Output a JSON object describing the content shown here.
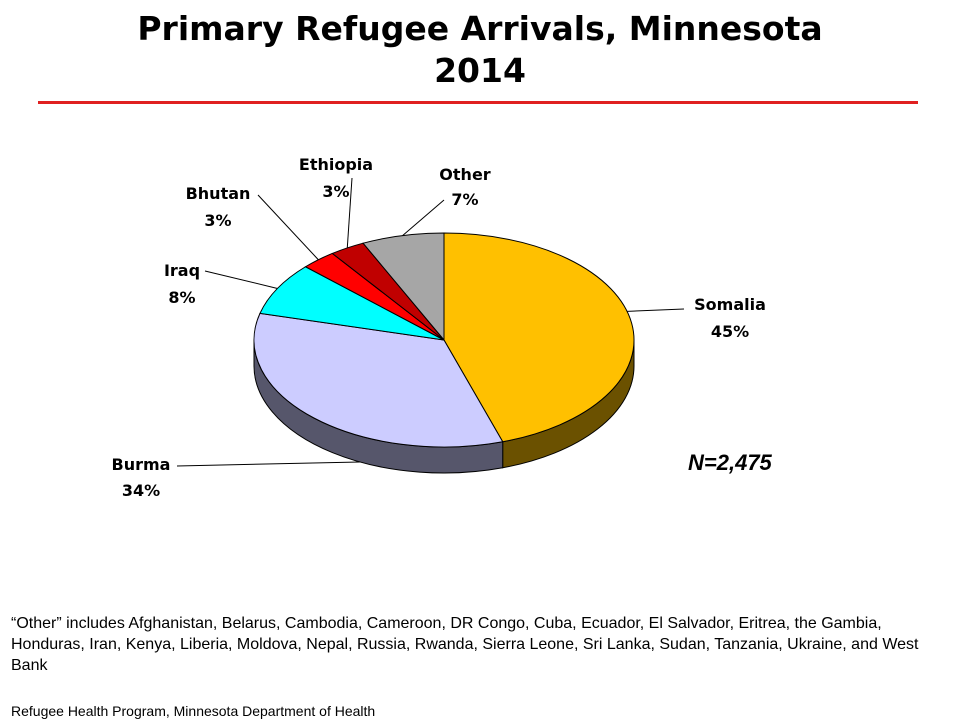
{
  "title_line1": "Primary Refugee Arrivals, Minnesota",
  "title_line2": "2014",
  "rule_color": "#e02020",
  "chart_data": {
    "type": "pie",
    "title": "Primary Refugee Arrivals, Minnesota 2014",
    "slices": [
      {
        "label": "Somalia",
        "value": 45,
        "display": "45%",
        "color": "#ffc000"
      },
      {
        "label": "Burma",
        "value": 34,
        "display": "34%",
        "color": "#ccccff"
      },
      {
        "label": "Iraq",
        "value": 8,
        "display": "8%",
        "color": "#00ffff"
      },
      {
        "label": "Bhutan",
        "value": 3,
        "display": "3%",
        "color": "#ff0000"
      },
      {
        "label": "Ethiopia",
        "value": 3,
        "display": "3%",
        "color": "#c00000"
      },
      {
        "label": "Other",
        "value": 7,
        "display": "7%",
        "color": "#a6a6a6"
      }
    ],
    "start": "12 o'clock, clockwise",
    "style": "3d"
  },
  "n_label": "N=2,475",
  "footnote": "“Other” includes Afghanistan, Belarus, Cambodia, Cameroon, DR Congo, Cuba, Ecuador, El Salvador, Eritrea, the Gambia, Honduras, Iran, Kenya, Liberia, Moldova, Nepal, Russia, Rwanda, Sierra Leone, Sri Lanka, Sudan, Tanzania, Ukraine, and West Bank",
  "source": "Refugee Health Program, Minnesota Department of Health"
}
